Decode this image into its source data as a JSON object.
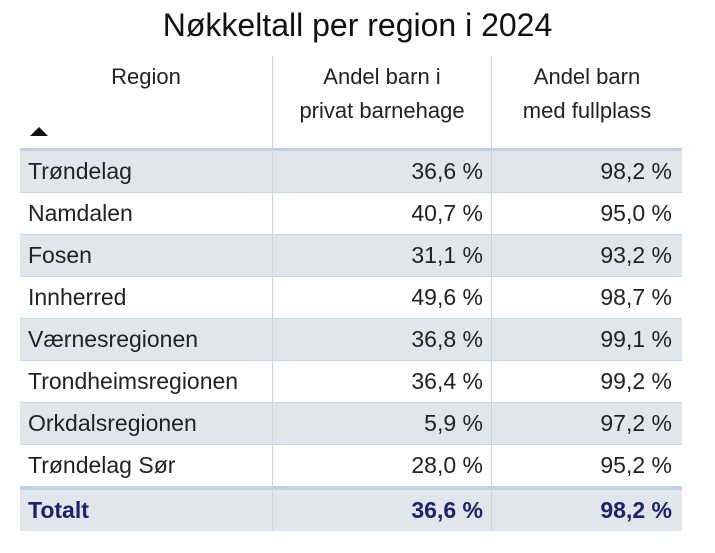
{
  "chart_data": {
    "type": "table",
    "title": "Nøkkeltall per region i 2024",
    "columns": [
      "Region",
      "Andel barn i privat barnehage",
      "Andel barn med fullplass"
    ],
    "column_header_lines": {
      "region": "Region",
      "privat": [
        "Andel barn i",
        "privat barnehage"
      ],
      "fullplass": [
        "Andel barn",
        "med fullplass"
      ]
    },
    "sort": {
      "column": "Region",
      "direction": "ascending",
      "icon": "sort-ascending-icon"
    },
    "rows": [
      {
        "region": "Trøndelag",
        "privat": "36,6 %",
        "fullplass": "98,2 %"
      },
      {
        "region": "Namdalen",
        "privat": "40,7 %",
        "fullplass": "95,0 %"
      },
      {
        "region": "Fosen",
        "privat": "31,1 %",
        "fullplass": "93,2 %"
      },
      {
        "region": "Innherred",
        "privat": "49,6 %",
        "fullplass": "98,7 %"
      },
      {
        "region": "Værnesregionen",
        "privat": "36,8 %",
        "fullplass": "99,1 %"
      },
      {
        "region": "Trondheimsregionen",
        "privat": "36,4 %",
        "fullplass": "99,2 %"
      },
      {
        "region": "Orkdalsregionen",
        "privat": "5,9 %",
        "fullplass": "97,2 %"
      },
      {
        "region": "Trøndelag Sør",
        "privat": "28,0 %",
        "fullplass": "95,2 %"
      }
    ],
    "total": {
      "region": "Totalt",
      "privat": "36,6 %",
      "fullplass": "98,2 %"
    },
    "colors": {
      "row_band": "#e1e6ec",
      "rule": "#c3d0df",
      "total_text": "#1c2467"
    }
  }
}
